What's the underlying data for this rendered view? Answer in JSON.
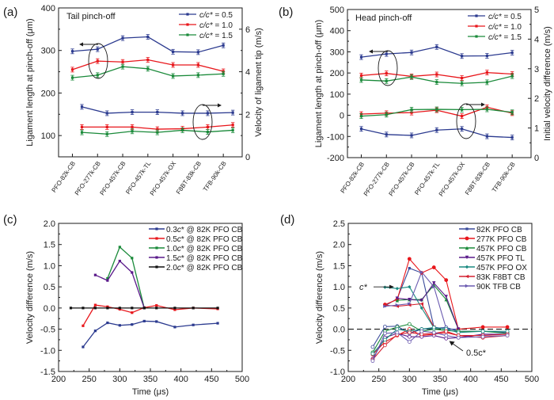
{
  "chart_data": [
    {
      "id": "a",
      "type": "line",
      "panel_label": "(a)",
      "annotation": "Tail pinch-off",
      "categories": [
        "PFO-82k-CB",
        "PFO-277k-CB",
        "PFO-457k-CB",
        "PFO-457k-TL",
        "PFO-457k-OX",
        "F8BT-83k-CB",
        "TFB-90k-CB"
      ],
      "ylabel": "Ligament length at pinch-off (μm)",
      "y2label": "Velocity of ligament tip (m/s)",
      "ylim": [
        50,
        400
      ],
      "yticks": [
        100,
        200,
        300,
        400
      ],
      "y2lim": [
        0,
        7
      ],
      "y2ticks": [
        0,
        2,
        4,
        6
      ],
      "legend": "top-right",
      "series": [
        {
          "name": "c/c* = 0.5",
          "color": "#2b3a8f",
          "axis": "left",
          "values": [
            298,
            303,
            329,
            332,
            297,
            296,
            312
          ]
        },
        {
          "name": "c/c* = 1.0",
          "color": "#e8161b",
          "axis": "left",
          "values": [
            255,
            275,
            273,
            278,
            266,
            266,
            251
          ]
        },
        {
          "name": "c/c* = 1.5",
          "color": "#1a8a3a",
          "axis": "left",
          "values": [
            236,
            242,
            262,
            257,
            240,
            242,
            245
          ]
        },
        {
          "name": "c/c* = 0.5",
          "color": "#2b3a8f",
          "axis": "right",
          "offset": 0.35,
          "values": [
            2.35,
            2.05,
            2.1,
            2.1,
            2.05,
            2.05,
            2.08
          ]
        },
        {
          "name": "c/c* = 1.0",
          "color": "#e8161b",
          "axis": "right",
          "offset": 0.35,
          "values": [
            1.4,
            1.4,
            1.4,
            1.3,
            1.32,
            1.4,
            1.5
          ]
        },
        {
          "name": "c/c* = 1.5",
          "color": "#1a8a3a",
          "axis": "right",
          "offset": 0.35,
          "values": [
            1.15,
            1.07,
            1.2,
            1.15,
            1.25,
            1.17,
            1.25
          ]
        }
      ],
      "legend_entries": [
        {
          "label_prefix": "c/c*",
          "label_suffix": " = 0.5",
          "color": "#2b3a8f"
        },
        {
          "label_prefix": "c/c*",
          "label_suffix": " = 1.0",
          "color": "#e8161b"
        },
        {
          "label_prefix": "c/c*",
          "label_suffix": " = 1.5",
          "color": "#1a8a3a"
        }
      ]
    },
    {
      "id": "b",
      "type": "line",
      "panel_label": "(b)",
      "annotation": "Head pinch-off",
      "categories": [
        "PFO-82k-CB",
        "PFO-277k-CB",
        "PFO-457k-CB",
        "PFO-457k-TL",
        "PFO-457k-OX",
        "F8BT-83k-CB",
        "TFB-90k-CB"
      ],
      "ylabel": "Ligament length at pinch-off (μm)",
      "y2label": "Initial velocity difference (m/s)",
      "ylim": [
        -200,
        500
      ],
      "yticks": [
        -200,
        -100,
        0,
        100,
        200,
        300,
        400,
        500
      ],
      "y2lim": [
        0,
        5
      ],
      "y2ticks": [
        0,
        1,
        2,
        3,
        4,
        5
      ],
      "legend": "top-right",
      "series": [
        {
          "name": "c/c* = 0.5",
          "color": "#2b3a8f",
          "axis": "left",
          "values": [
            275,
            290,
            297,
            323,
            280,
            281,
            296
          ]
        },
        {
          "name": "c/c* = 1.0",
          "color": "#e8161b",
          "axis": "left",
          "values": [
            188,
            198,
            184,
            193,
            176,
            202,
            195
          ]
        },
        {
          "name": "c/c* = 1.5",
          "color": "#1a8a3a",
          "axis": "left",
          "values": [
            167,
            162,
            181,
            157,
            151,
            156,
            185
          ]
        },
        {
          "name": "c/c* = 1.0",
          "color": "#e8161b",
          "axis": "right",
          "values": [
            1.47,
            1.5,
            1.52,
            1.6,
            1.4,
            1.7,
            1.5
          ]
        },
        {
          "name": "c/c* = 1.5",
          "color": "#1a8a3a",
          "axis": "right",
          "values": [
            1.4,
            1.45,
            1.62,
            1.63,
            1.62,
            1.63,
            1.53
          ]
        },
        {
          "name": "c/c* = 0.5",
          "color": "#2b3a8f",
          "axis": "right",
          "values": [
            0.97,
            0.78,
            0.75,
            0.93,
            0.97,
            0.72,
            0.68
          ]
        }
      ],
      "legend_entries": [
        {
          "label_prefix": "c/c*",
          "label_suffix": " = 0.5",
          "color": "#2b3a8f"
        },
        {
          "label_prefix": "c/c*",
          "label_suffix": " = 1.0",
          "color": "#e8161b"
        },
        {
          "label_prefix": "c/c*",
          "label_suffix": " = 1.5",
          "color": "#1a8a3a"
        }
      ]
    },
    {
      "id": "c",
      "type": "line",
      "panel_label": "(c)",
      "xlabel": "Time (μs)",
      "ylabel": "Velocity difference (m/s)",
      "xlim": [
        200,
        500
      ],
      "xticks": [
        200,
        250,
        300,
        350,
        400,
        450,
        500
      ],
      "ylim": [
        -1.5,
        2.0
      ],
      "yticks": [
        -1.5,
        -1.0,
        -0.5,
        0.0,
        0.5,
        1.0,
        1.5,
        2.0
      ],
      "legend": "top-right",
      "series": [
        {
          "name": "0.3c* @ 82K PFO CB",
          "color": "#2b3a8f",
          "x": [
            240,
            260,
            280,
            300,
            320,
            340,
            360,
            390,
            420,
            460
          ],
          "y": [
            -0.92,
            -0.54,
            -0.35,
            -0.41,
            -0.39,
            -0.31,
            -0.32,
            -0.45,
            -0.4,
            -0.36
          ]
        },
        {
          "name": "0.5c* @ 82K PFO CB",
          "color": "#e8161b",
          "x": [
            240,
            260,
            280,
            300,
            320,
            340,
            360,
            390,
            420,
            460
          ],
          "y": [
            -0.42,
            0.07,
            0.03,
            -0.03,
            -0.11,
            0.01,
            0.06,
            -0.04,
            0.0,
            -0.02
          ]
        },
        {
          "name": "1.0c* @ 82K PFO CB",
          "color": "#1a8a3a",
          "x": [
            280,
            300,
            320,
            340
          ],
          "y": [
            0.7,
            1.44,
            1.18,
            0.0
          ]
        },
        {
          "name": "1.5c* @ 82K PFO CB",
          "color": "#5a1a8a",
          "x": [
            260,
            280,
            300,
            320,
            340
          ],
          "y": [
            0.78,
            0.65,
            1.11,
            0.84,
            0.0
          ]
        },
        {
          "name": "2.0c* @ 82K PFO CB",
          "color": "#111111",
          "x": [
            220,
            240,
            260,
            280,
            300,
            320,
            340,
            360,
            390,
            420,
            460
          ],
          "y": [
            0,
            0,
            0,
            0,
            0,
            0,
            0,
            0,
            0,
            0,
            0
          ]
        }
      ],
      "legend_entries": [
        {
          "label_prefix": "0.3",
          "label_italic": "c",
          "label_suffix": "* @ 82K PFO CB",
          "color": "#2b3a8f"
        },
        {
          "label_prefix": "0.5",
          "label_italic": "c",
          "label_suffix": "* @ 82K PFO CB",
          "color": "#e8161b"
        },
        {
          "label_prefix": "1.0",
          "label_italic": "c",
          "label_suffix": "* @ 82K PFO CB",
          "color": "#1a8a3a"
        },
        {
          "label_prefix": "1.5",
          "label_italic": "c",
          "label_suffix": "* @ 82K PFO CB",
          "color": "#5a1a8a"
        },
        {
          "label_prefix": "2.0",
          "label_italic": "c",
          "label_suffix": "* @ 82K PFO CB",
          "color": "#111111"
        }
      ]
    },
    {
      "id": "d",
      "type": "line",
      "panel_label": "(d)",
      "xlabel": "Time (μs)",
      "ylabel": "Velocity difference (m/s)",
      "xlim": [
        200,
        500
      ],
      "xticks": [
        200,
        250,
        300,
        350,
        400,
        450,
        500
      ],
      "ylim": [
        -1.0,
        2.5
      ],
      "yticks": [
        -1.0,
        -0.5,
        0.0,
        0.5,
        1.0,
        1.5,
        2.0,
        2.5
      ],
      "legend": "top-right",
      "annotations": [
        {
          "text": "c*",
          "points_to": "c* curves (upper group)"
        },
        {
          "text": "0.5c*",
          "points_to": "0.5c* curves (lower group)"
        }
      ],
      "reference_line": {
        "y": 0,
        "style": "dashed"
      },
      "series": [
        {
          "name": "82K PFO CB (c*)",
          "color": "#3a4a9a",
          "x": [
            260,
            280,
            300,
            320,
            340,
            360,
            380
          ],
          "y": [
            0.55,
            0.72,
            1.44,
            1.33,
            0.05,
            0.0,
            0.0
          ]
        },
        {
          "name": "277K PFO CB (c*)",
          "color": "#e8161b",
          "x": [
            260,
            280,
            300,
            320,
            340,
            360,
            380,
            420,
            460
          ],
          "y": [
            0.58,
            0.7,
            1.66,
            1.33,
            1.46,
            1.16,
            0.0,
            0.05,
            0.05
          ]
        },
        {
          "name": "457K PFO CB (c*)",
          "color": "#1a8a3a",
          "x": [
            280,
            300,
            320,
            340,
            360,
            380
          ],
          "y": [
            0.68,
            0.7,
            0.7,
            1.04,
            0.7,
            0.0
          ]
        },
        {
          "name": "457K PFO TL (c*)",
          "color": "#5a1a8a",
          "x": [
            280,
            300,
            320,
            340,
            360,
            380
          ],
          "y": [
            0.73,
            0.7,
            0.68,
            1.09,
            0.77,
            0.0
          ]
        },
        {
          "name": "457K PFO OX (c*)",
          "color": "#1a8a80",
          "x": [
            260,
            280,
            300,
            320,
            340
          ],
          "y": [
            0.99,
            0.96,
            1.0,
            0.5,
            0.03
          ]
        },
        {
          "name": "83K F8BT CB (c*)",
          "color": "#d42030",
          "x": [
            260,
            280,
            300,
            320,
            340
          ],
          "y": [
            0.57,
            0.54,
            0.57,
            0.6,
            0.05
          ]
        },
        {
          "name": "90K TFB CB (c*)",
          "color": "#6a5ab0",
          "x": [
            260,
            280,
            300,
            320,
            340,
            360
          ],
          "y": [
            0.54,
            0.57,
            0.6,
            1.35,
            1.0,
            0.02
          ]
        },
        {
          "name": "82K PFO CB (0.5c*)",
          "color": "#3a4a9a",
          "x": [
            240,
            260,
            280,
            300,
            320,
            340,
            360,
            380,
            420,
            460
          ],
          "y": [
            -0.42,
            0.06,
            0.07,
            -0.1,
            0.0,
            0.02,
            0.04,
            -0.05,
            -0.05,
            -0.08
          ]
        },
        {
          "name": "277K PFO CB (0.5c*)",
          "color": "#e8161b",
          "x": [
            240,
            260,
            280,
            300,
            320,
            340,
            360,
            380,
            420,
            460
          ],
          "y": [
            -0.6,
            -0.3,
            -0.15,
            0.0,
            -0.15,
            -0.12,
            -0.08,
            -0.15,
            -0.2,
            -0.15
          ]
        },
        {
          "name": "457K PFO CB (0.5c*)",
          "color": "#1a8a3a",
          "x": [
            240,
            260,
            280,
            300,
            320,
            340,
            360,
            380,
            420,
            460
          ],
          "y": [
            -0.55,
            -0.05,
            0.05,
            0.12,
            -0.05,
            0.0,
            -0.03,
            -0.05,
            -0.05,
            -0.1
          ]
        },
        {
          "name": "457K PFO TL (0.5c*)",
          "color": "#5a1a8a",
          "x": [
            240,
            260,
            280,
            300,
            320,
            340,
            360,
            380,
            420,
            460
          ],
          "y": [
            -0.7,
            -0.2,
            -0.1,
            -0.18,
            -0.18,
            -0.15,
            -0.22,
            -0.2,
            -0.12,
            -0.12
          ]
        },
        {
          "name": "457K PFO OX (0.5c*)",
          "color": "#1a8a80",
          "x": [
            240,
            260,
            280,
            300,
            320,
            340,
            360,
            380,
            420,
            460
          ],
          "y": [
            -0.58,
            -0.25,
            0.0,
            -0.05,
            0.0,
            0.04,
            0.0,
            -0.08,
            -0.05,
            -0.05
          ]
        },
        {
          "name": "83K F8BT CB (0.5c*)",
          "color": "#d42030",
          "x": [
            240,
            260,
            280,
            300,
            320,
            340,
            360,
            380,
            420,
            460
          ],
          "y": [
            -0.72,
            -0.38,
            -0.13,
            -0.08,
            -0.12,
            -0.1,
            -0.05,
            -0.15,
            -0.15,
            -0.12
          ]
        },
        {
          "name": "90K TFB CB (0.5c*)",
          "color": "#6a5ab0",
          "x": [
            240,
            260,
            280,
            300,
            320,
            340,
            360,
            380,
            420,
            460
          ],
          "y": [
            -0.75,
            -0.1,
            -0.08,
            -0.3,
            -0.05,
            -0.08,
            -0.15,
            -0.2,
            -0.18,
            -0.15
          ]
        }
      ],
      "legend_entries": [
        {
          "label": "82K PFO CB",
          "color": "#3a4a9a",
          "marker": "square"
        },
        {
          "label": "277K PFO CB",
          "color": "#e8161b",
          "marker": "circle"
        },
        {
          "label": "457K PFO CB",
          "color": "#1a8a3a",
          "marker": "triangle-up"
        },
        {
          "label": "457K PFO TL",
          "color": "#5a1a8a",
          "marker": "triangle-down"
        },
        {
          "label": "457K PFO OX",
          "color": "#1a8a80",
          "marker": "diamond"
        },
        {
          "label": " 83K F8BT CB",
          "color": "#d42030",
          "marker": "triangle-left"
        },
        {
          "label": " 90K TFB  CB",
          "color": "#6a5ab0",
          "marker": "triangle-right"
        }
      ]
    }
  ]
}
